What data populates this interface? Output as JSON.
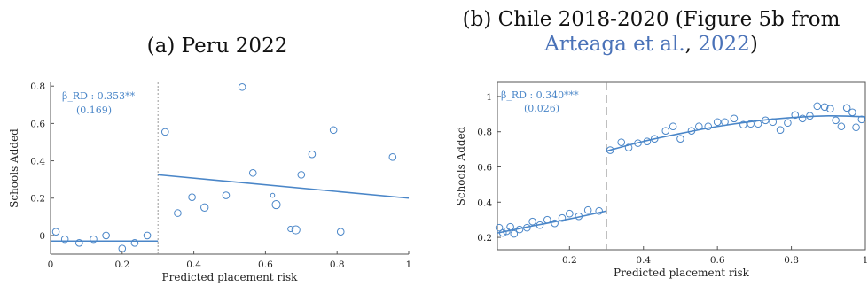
{
  "colors": {
    "accent": "#4a86c8",
    "axis": "#555555",
    "cite": "#4a72b8"
  },
  "panel_a": {
    "caption": "(a) Peru 2022",
    "annotation": {
      "coef": "β_RD : 0.353**",
      "se": "(0.169)"
    }
  },
  "panel_b": {
    "caption_prefix": "(b) Chile 2018-2020 (Figure 5b from",
    "caption_cite_author": "Arteaga et al.",
    "caption_cite_sep": ", ",
    "caption_cite_year": "2022",
    "caption_suffix": ")",
    "annotation": {
      "coef": "β_RD : 0.340***",
      "se": "(0.026)"
    }
  },
  "chart_data": [
    {
      "type": "scatter",
      "title": "(a) Peru 2022",
      "xlabel": "Predicted placement risk",
      "ylabel": "Schools Added",
      "xlim": [
        0,
        1
      ],
      "ylim": [
        -0.1,
        0.82
      ],
      "xticks": [
        0,
        0.2,
        0.4,
        0.6,
        0.8,
        1
      ],
      "xtick_labels": [
        "0",
        "0.2",
        "0.4",
        "0.6",
        "0.8",
        "1"
      ],
      "yticks": [
        0,
        0.2,
        0.4,
        0.6,
        0.8
      ],
      "ytick_labels": [
        "0",
        "0.2",
        "0.4",
        "0.6",
        "0.8"
      ],
      "cutoff": 0.3,
      "points": [
        {
          "x": 0.015,
          "y": 0.02,
          "s": 1
        },
        {
          "x": 0.04,
          "y": -0.02,
          "s": 1
        },
        {
          "x": 0.08,
          "y": -0.04,
          "s": 1
        },
        {
          "x": 0.12,
          "y": -0.02,
          "s": 1
        },
        {
          "x": 0.155,
          "y": 0.0,
          "s": 1
        },
        {
          "x": 0.2,
          "y": -0.07,
          "s": 1
        },
        {
          "x": 0.235,
          "y": -0.04,
          "s": 1
        },
        {
          "x": 0.27,
          "y": 0.0,
          "s": 1
        },
        {
          "x": 0.32,
          "y": 0.555,
          "s": 1
        },
        {
          "x": 0.355,
          "y": 0.12,
          "s": 1
        },
        {
          "x": 0.395,
          "y": 0.205,
          "s": 1
        },
        {
          "x": 0.43,
          "y": 0.15,
          "s": 1.1
        },
        {
          "x": 0.49,
          "y": 0.215,
          "s": 1
        },
        {
          "x": 0.535,
          "y": 0.795,
          "s": 1
        },
        {
          "x": 0.565,
          "y": 0.335,
          "s": 1
        },
        {
          "x": 0.62,
          "y": 0.215,
          "s": 0.6
        },
        {
          "x": 0.63,
          "y": 0.165,
          "s": 1.2
        },
        {
          "x": 0.67,
          "y": 0.035,
          "s": 0.8
        },
        {
          "x": 0.685,
          "y": 0.03,
          "s": 1.2
        },
        {
          "x": 0.7,
          "y": 0.325,
          "s": 1
        },
        {
          "x": 0.73,
          "y": 0.435,
          "s": 1
        },
        {
          "x": 0.79,
          "y": 0.565,
          "s": 1
        },
        {
          "x": 0.81,
          "y": 0.02,
          "s": 1
        },
        {
          "x": 0.955,
          "y": 0.42,
          "s": 1
        }
      ],
      "fits": [
        {
          "x": [
            0.0,
            0.3
          ],
          "y": [
            -0.03,
            -0.03
          ]
        },
        {
          "x": [
            0.3,
            1.0
          ],
          "y": [
            0.325,
            0.2
          ]
        }
      ]
    },
    {
      "type": "scatter",
      "title": "(b) Chile 2018-2020 (Figure 5b from Arteaga et al., 2022)",
      "xlabel": "Predicted placement risk",
      "ylabel": "Schools Added",
      "xlim": [
        0.005,
        1.0
      ],
      "ylim": [
        0.13,
        1.08
      ],
      "xticks": [
        0.2,
        0.4,
        0.6,
        0.8,
        1
      ],
      "xtick_labels": [
        "0.2",
        "0.4",
        "0.6",
        "0.8",
        "1"
      ],
      "yticks": [
        0.2,
        0.4,
        0.6,
        0.8,
        1
      ],
      "ytick_labels": [
        "0.2",
        "0.4",
        "0.6",
        "0.8",
        "1"
      ],
      "cutoff": 0.3,
      "points": [
        {
          "x": 0.01,
          "y": 0.255,
          "s": 1
        },
        {
          "x": 0.02,
          "y": 0.225,
          "s": 1
        },
        {
          "x": 0.03,
          "y": 0.235,
          "s": 1
        },
        {
          "x": 0.04,
          "y": 0.26,
          "s": 1
        },
        {
          "x": 0.05,
          "y": 0.22,
          "s": 1
        },
        {
          "x": 0.065,
          "y": 0.245,
          "s": 1
        },
        {
          "x": 0.085,
          "y": 0.255,
          "s": 1
        },
        {
          "x": 0.1,
          "y": 0.29,
          "s": 1
        },
        {
          "x": 0.12,
          "y": 0.27,
          "s": 1
        },
        {
          "x": 0.14,
          "y": 0.3,
          "s": 1
        },
        {
          "x": 0.16,
          "y": 0.28,
          "s": 1
        },
        {
          "x": 0.18,
          "y": 0.31,
          "s": 1
        },
        {
          "x": 0.2,
          "y": 0.335,
          "s": 1
        },
        {
          "x": 0.225,
          "y": 0.32,
          "s": 1
        },
        {
          "x": 0.25,
          "y": 0.355,
          "s": 1
        },
        {
          "x": 0.28,
          "y": 0.35,
          "s": 1
        },
        {
          "x": 0.31,
          "y": 0.695,
          "s": 1
        },
        {
          "x": 0.34,
          "y": 0.74,
          "s": 1
        },
        {
          "x": 0.36,
          "y": 0.71,
          "s": 1
        },
        {
          "x": 0.385,
          "y": 0.735,
          "s": 1
        },
        {
          "x": 0.41,
          "y": 0.745,
          "s": 1
        },
        {
          "x": 0.43,
          "y": 0.76,
          "s": 1
        },
        {
          "x": 0.46,
          "y": 0.805,
          "s": 1
        },
        {
          "x": 0.48,
          "y": 0.83,
          "s": 1
        },
        {
          "x": 0.5,
          "y": 0.76,
          "s": 1
        },
        {
          "x": 0.53,
          "y": 0.805,
          "s": 1
        },
        {
          "x": 0.55,
          "y": 0.83,
          "s": 1
        },
        {
          "x": 0.575,
          "y": 0.83,
          "s": 1
        },
        {
          "x": 0.6,
          "y": 0.855,
          "s": 1
        },
        {
          "x": 0.62,
          "y": 0.855,
          "s": 1
        },
        {
          "x": 0.645,
          "y": 0.875,
          "s": 1
        },
        {
          "x": 0.67,
          "y": 0.84,
          "s": 1
        },
        {
          "x": 0.69,
          "y": 0.845,
          "s": 1
        },
        {
          "x": 0.71,
          "y": 0.845,
          "s": 1
        },
        {
          "x": 0.73,
          "y": 0.865,
          "s": 1
        },
        {
          "x": 0.75,
          "y": 0.855,
          "s": 1
        },
        {
          "x": 0.77,
          "y": 0.81,
          "s": 1
        },
        {
          "x": 0.79,
          "y": 0.85,
          "s": 1
        },
        {
          "x": 0.81,
          "y": 0.895,
          "s": 1
        },
        {
          "x": 0.83,
          "y": 0.875,
          "s": 1
        },
        {
          "x": 0.85,
          "y": 0.89,
          "s": 1
        },
        {
          "x": 0.87,
          "y": 0.945,
          "s": 1
        },
        {
          "x": 0.89,
          "y": 0.94,
          "s": 1
        },
        {
          "x": 0.905,
          "y": 0.93,
          "s": 1
        },
        {
          "x": 0.92,
          "y": 0.865,
          "s": 1
        },
        {
          "x": 0.935,
          "y": 0.83,
          "s": 1
        },
        {
          "x": 0.95,
          "y": 0.935,
          "s": 1
        },
        {
          "x": 0.965,
          "y": 0.91,
          "s": 1
        },
        {
          "x": 0.975,
          "y": 0.825,
          "s": 1
        },
        {
          "x": 0.99,
          "y": 0.87,
          "s": 1
        }
      ],
      "fits": [
        {
          "x": [
            0.005,
            0.1,
            0.2,
            0.3
          ],
          "y": [
            0.225,
            0.265,
            0.305,
            0.35
          ]
        },
        {
          "x": [
            0.3,
            0.4,
            0.5,
            0.6,
            0.7,
            0.8,
            0.9,
            1.0
          ],
          "y": [
            0.69,
            0.745,
            0.79,
            0.83,
            0.86,
            0.88,
            0.89,
            0.885
          ]
        }
      ],
      "fit_smooth": true
    }
  ]
}
